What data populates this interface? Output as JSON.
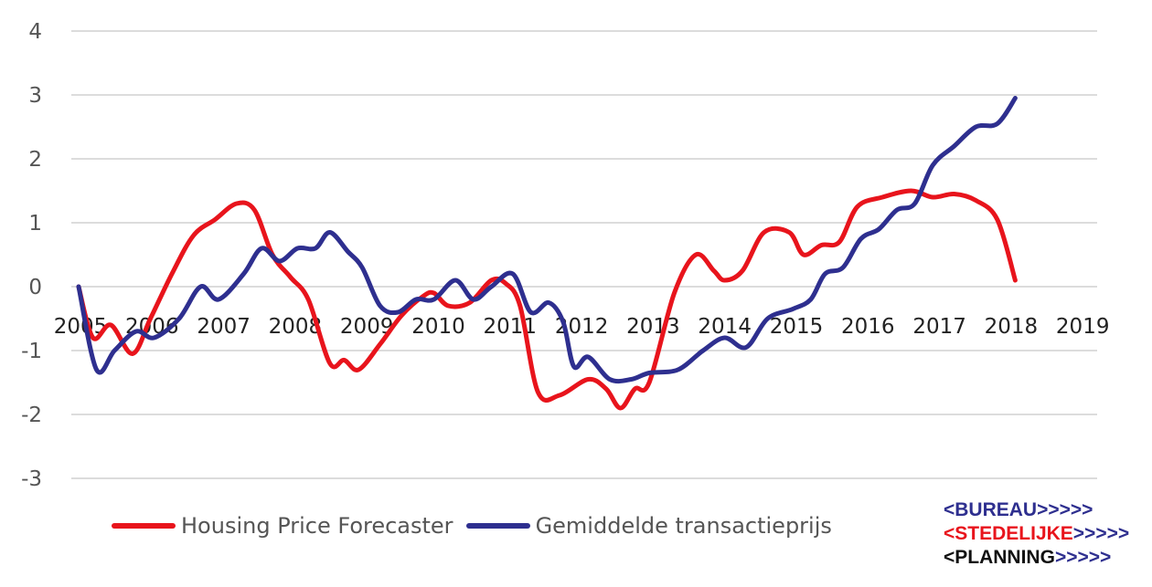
{
  "chart_data": {
    "type": "line",
    "title": "",
    "xlabel": "",
    "ylabel": "",
    "ylim": [
      -3,
      4
    ],
    "xlim": [
      2005,
      2019.3
    ],
    "yticks": [
      "4",
      "3",
      "2",
      "1",
      "0",
      "-1",
      "-2",
      "-3"
    ],
    "xticks": [
      "2005",
      "2006",
      "2007",
      "2008",
      "2009",
      "2010",
      "2011",
      "2012",
      "2013",
      "2014",
      "2015",
      "2016",
      "2017",
      "2018",
      "2019"
    ],
    "grid": true,
    "legend_position": "bottom-left",
    "series": [
      {
        "name": "Housing Price Forecaster",
        "color": "#e8141c",
        "points": [
          [
            2005,
            0
          ],
          [
            2005.2,
            -0.8
          ],
          [
            2005.45,
            -0.6
          ],
          [
            2005.75,
            -1.05
          ],
          [
            2006,
            -0.5
          ],
          [
            2006.3,
            0.2
          ],
          [
            2006.6,
            0.8
          ],
          [
            2006.9,
            1.05
          ],
          [
            2007.2,
            1.3
          ],
          [
            2007.45,
            1.2
          ],
          [
            2007.7,
            0.5
          ],
          [
            2007.95,
            0.15
          ],
          [
            2008.2,
            -0.2
          ],
          [
            2008.5,
            -1.2
          ],
          [
            2008.7,
            -1.15
          ],
          [
            2008.9,
            -1.3
          ],
          [
            2009.2,
            -0.9
          ],
          [
            2009.5,
            -0.45
          ],
          [
            2009.8,
            -0.15
          ],
          [
            2009.95,
            -0.1
          ],
          [
            2010.15,
            -0.3
          ],
          [
            2010.45,
            -0.25
          ],
          [
            2010.75,
            0.1
          ],
          [
            2010.95,
            0.05
          ],
          [
            2011.15,
            -0.3
          ],
          [
            2011.4,
            -1.65
          ],
          [
            2011.7,
            -1.7
          ],
          [
            2012.1,
            -1.45
          ],
          [
            2012.35,
            -1.6
          ],
          [
            2012.55,
            -1.9
          ],
          [
            2012.75,
            -1.6
          ],
          [
            2012.95,
            -1.5
          ],
          [
            2013.3,
            -0.1
          ],
          [
            2013.6,
            0.5
          ],
          [
            2013.85,
            0.25
          ],
          [
            2014.0,
            0.1
          ],
          [
            2014.25,
            0.25
          ],
          [
            2014.55,
            0.85
          ],
          [
            2014.9,
            0.85
          ],
          [
            2015.1,
            0.5
          ],
          [
            2015.35,
            0.65
          ],
          [
            2015.6,
            0.7
          ],
          [
            2015.85,
            1.25
          ],
          [
            2016.2,
            1.4
          ],
          [
            2016.6,
            1.5
          ],
          [
            2016.9,
            1.4
          ],
          [
            2017.2,
            1.45
          ],
          [
            2017.5,
            1.35
          ],
          [
            2017.8,
            1.05
          ],
          [
            2018.05,
            0.1
          ]
        ]
      },
      {
        "name": "Gemiddelde transactieprijs",
        "color": "#2e2f8f",
        "points": [
          [
            2005,
            0
          ],
          [
            2005.25,
            -1.3
          ],
          [
            2005.5,
            -1.0
          ],
          [
            2005.8,
            -0.7
          ],
          [
            2006.05,
            -0.8
          ],
          [
            2006.4,
            -0.5
          ],
          [
            2006.7,
            0
          ],
          [
            2006.95,
            -0.2
          ],
          [
            2007.3,
            0.2
          ],
          [
            2007.55,
            0.6
          ],
          [
            2007.8,
            0.4
          ],
          [
            2008.05,
            0.6
          ],
          [
            2008.3,
            0.6
          ],
          [
            2008.5,
            0.85
          ],
          [
            2008.75,
            0.55
          ],
          [
            2008.95,
            0.3
          ],
          [
            2009.2,
            -0.3
          ],
          [
            2009.45,
            -0.4
          ],
          [
            2009.7,
            -0.2
          ],
          [
            2009.95,
            -0.2
          ],
          [
            2010.25,
            0.1
          ],
          [
            2010.5,
            -0.2
          ],
          [
            2010.75,
            0
          ],
          [
            2011.05,
            0.2
          ],
          [
            2011.3,
            -0.4
          ],
          [
            2011.55,
            -0.25
          ],
          [
            2011.75,
            -0.55
          ],
          [
            2011.9,
            -1.25
          ],
          [
            2012.1,
            -1.1
          ],
          [
            2012.4,
            -1.45
          ],
          [
            2012.7,
            -1.45
          ],
          [
            2012.95,
            -1.35
          ],
          [
            2013.35,
            -1.3
          ],
          [
            2013.7,
            -1.0
          ],
          [
            2014.0,
            -0.8
          ],
          [
            2014.3,
            -0.95
          ],
          [
            2014.6,
            -0.5
          ],
          [
            2014.95,
            -0.35
          ],
          [
            2015.2,
            -0.2
          ],
          [
            2015.4,
            0.2
          ],
          [
            2015.65,
            0.3
          ],
          [
            2015.9,
            0.75
          ],
          [
            2016.15,
            0.9
          ],
          [
            2016.4,
            1.2
          ],
          [
            2016.65,
            1.3
          ],
          [
            2016.9,
            1.9
          ],
          [
            2017.2,
            2.2
          ],
          [
            2017.5,
            2.5
          ],
          [
            2017.8,
            2.55
          ],
          [
            2018.05,
            2.95
          ]
        ]
      }
    ]
  },
  "logo": {
    "line1": "BUREAU",
    "line2": "STEDELIJKE",
    "line3": "PLANNING",
    "open_chevron": "<",
    "arrows": ">>>>>",
    "color_dark": "#2e2f8f",
    "color_red": "#e8141c",
    "color_black": "#111111"
  }
}
